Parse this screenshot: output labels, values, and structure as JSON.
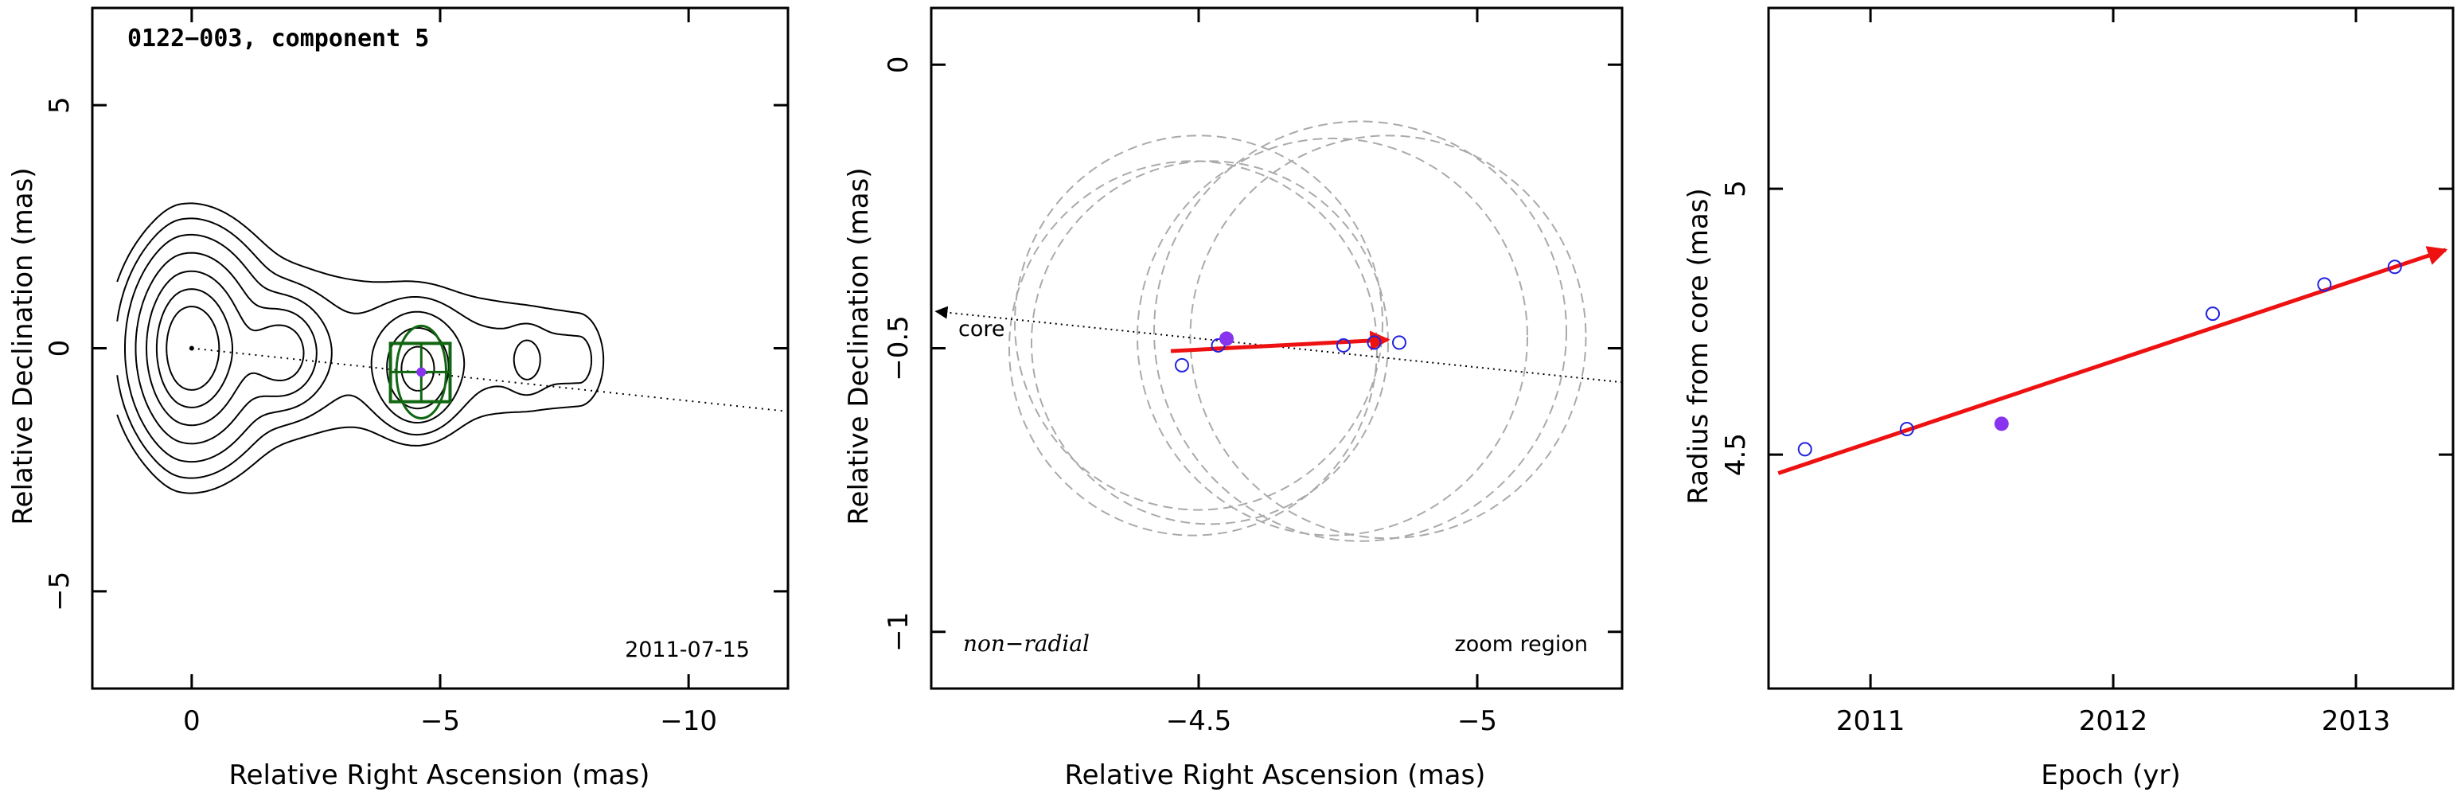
{
  "chart_data": [
    {
      "type": "contour",
      "title": "0122−003, component 5",
      "xlabel": "Relative Right Ascension (mas)",
      "ylabel": "Relative Declination (mas)",
      "xlim": [
        2,
        -12
      ],
      "ylim": [
        -7,
        7
      ],
      "xticks": [
        0,
        -5,
        -10
      ],
      "xtick_labels": [
        "0",
        "−5",
        "−10"
      ],
      "yticks": [
        5,
        0,
        -5
      ],
      "ytick_labels": [
        "5",
        "0",
        "−5"
      ],
      "date_label": "2011-07-15",
      "core_position": [
        0,
        0
      ],
      "component_position": [
        -4.62,
        -0.49
      ],
      "zoom_box": {
        "x": [
          -4.0,
          -5.2
        ],
        "y": [
          -1.1,
          0.1
        ]
      },
      "component_ellipse": {
        "x": -4.62,
        "y": -0.49,
        "rx": 0.5,
        "ry": 0.95
      },
      "direction_line": {
        "from": [
          0,
          0
        ],
        "to": [
          -12,
          -1.3
        ]
      },
      "contour_sources": [
        {
          "x": 0,
          "y": 0,
          "w": 0.7,
          "h": 1.15
        },
        {
          "x": -1.85,
          "y": -0.1,
          "w": 0.45,
          "h": 0.6
        },
        {
          "x": -4.55,
          "y": -0.45,
          "w": 0.45,
          "h": 0.65
        },
        {
          "x": -6.75,
          "y": -0.25,
          "w": 0.2,
          "h": 0.35
        }
      ]
    },
    {
      "type": "scatter",
      "xlabel": "Relative Right Ascension (mas)",
      "ylabel": "Relative Declination (mas)",
      "xlim": [
        -4.02,
        -5.26
      ],
      "ylim": [
        -1.1,
        0.1
      ],
      "xticks": [
        -4.5,
        -5
      ],
      "xtick_labels": [
        "−4.5",
        "−5"
      ],
      "yticks": [
        0,
        -0.5,
        -1
      ],
      "ytick_labels": [
        "0",
        "−0.5",
        "−1"
      ],
      "annotations": {
        "mode": "non−radial",
        "region": "zoom region",
        "core": "core"
      },
      "points": [
        {
          "x": -4.535,
          "y": -0.495,
          "filled": false
        },
        {
          "x": -4.47,
          "y": -0.53,
          "filled": false
        },
        {
          "x": -4.76,
          "y": -0.495,
          "filled": false
        },
        {
          "x": -4.815,
          "y": -0.49,
          "filled": false
        },
        {
          "x": -4.86,
          "y": -0.49,
          "filled": false
        }
      ],
      "highlight_point": {
        "x": -4.55,
        "y": -0.483,
        "filled": true
      },
      "motion_vector": {
        "from": [
          -4.45,
          -0.505
        ],
        "to": [
          -4.84,
          -0.485
        ]
      },
      "direction_line": {
        "from": [
          -4.02,
          -0.435
        ],
        "to": [
          -5.26,
          -0.56
        ]
      },
      "error_circles": [
        {
          "x": -4.5,
          "y": -0.455,
          "r": 0.33
        },
        {
          "x": -4.52,
          "y": -0.49,
          "r": 0.32
        },
        {
          "x": -4.49,
          "y": -0.5,
          "r": 0.33
        },
        {
          "x": -4.74,
          "y": -0.48,
          "r": 0.35
        },
        {
          "x": -4.79,
          "y": -0.47,
          "r": 0.37
        },
        {
          "x": -4.84,
          "y": -0.48,
          "r": 0.355
        }
      ]
    },
    {
      "type": "scatter",
      "xlabel": "Epoch (yr)",
      "ylabel": "Radius from core (mas)",
      "xlim": [
        2010.58,
        2013.4
      ],
      "ylim": [
        4.06,
        5.34
      ],
      "xticks": [
        2011,
        2012,
        2013
      ],
      "xtick_labels": [
        "2011",
        "2012",
        "2013"
      ],
      "yticks": [
        5,
        4.5
      ],
      "ytick_labels": [
        "5",
        "4.5"
      ],
      "points": [
        {
          "x": 2010.73,
          "y": 4.51,
          "filled": false
        },
        {
          "x": 2011.15,
          "y": 4.548,
          "filled": false
        },
        {
          "x": 2012.41,
          "y": 4.765,
          "filled": false
        },
        {
          "x": 2012.87,
          "y": 4.82,
          "filled": false
        },
        {
          "x": 2013.16,
          "y": 4.853,
          "filled": false
        }
      ],
      "highlight_point": {
        "x": 2011.54,
        "y": 4.558,
        "filled": true
      },
      "fit_line": {
        "from": [
          2010.62,
          4.465
        ],
        "to": [
          2013.37,
          4.885
        ]
      }
    }
  ],
  "colors": {
    "frame": "#000000",
    "points": "#2222dd",
    "highlight": "#8833ee",
    "vector": "#ee1111",
    "box": "#116611",
    "circles": "#aaaaaa"
  }
}
